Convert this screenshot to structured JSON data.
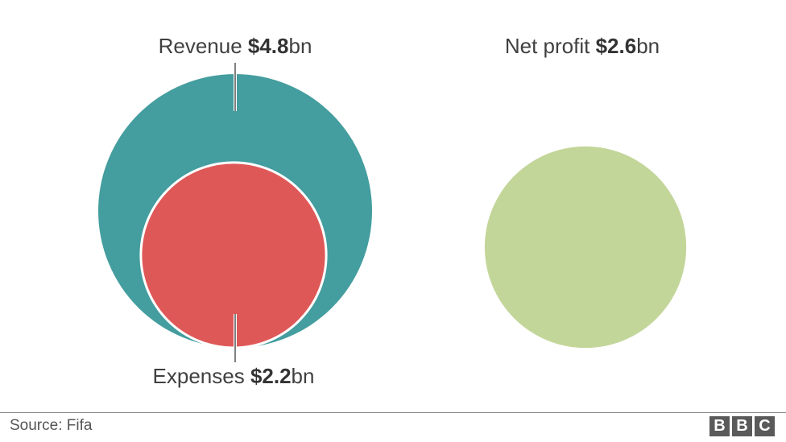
{
  "chart_data": {
    "type": "bubble",
    "unit": "bn",
    "currency": "$",
    "items": [
      {
        "key": "revenue",
        "name": "Revenue",
        "value": 4.8,
        "value_text": "$4.8",
        "color": "#449d9e"
      },
      {
        "key": "expenses",
        "name": "Expenses",
        "value": 2.2,
        "value_text": "$2.2",
        "color": "#df5858"
      },
      {
        "key": "net_profit",
        "name": "Net profit",
        "value": 2.6,
        "value_text": "$2.6",
        "color": "#c3d699"
      }
    ]
  },
  "labels": {
    "revenue_name": "Revenue",
    "revenue_value": "$4.8",
    "revenue_unit": "bn",
    "expenses_name": "Expenses",
    "expenses_value": "$2.2",
    "expenses_unit": "bn",
    "profit_name": "Net profit",
    "profit_value": "$2.6",
    "profit_unit": "bn"
  },
  "footer": {
    "source": "Source: Fifa",
    "logo_letters": [
      "B",
      "B",
      "C"
    ]
  }
}
